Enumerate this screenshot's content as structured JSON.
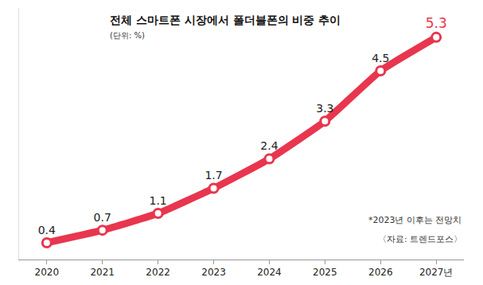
{
  "chart_data": {
    "type": "line",
    "title": "전체 스마트폰 시장에서 폴더블폰의 비중 추이",
    "subtitle": "(단위: %)",
    "categories": [
      "2020",
      "2021",
      "2022",
      "2023",
      "2024",
      "2025",
      "2026",
      "2027년"
    ],
    "values": [
      0.4,
      0.7,
      1.1,
      1.7,
      2.4,
      3.3,
      4.5,
      5.3
    ],
    "color": "#e8364e",
    "marker": "circle",
    "line_style": "solid",
    "ylim": [
      0,
      6
    ],
    "yticks": [],
    "tick_labels": "x",
    "data_labels": true,
    "grid": false,
    "annotations": [
      "*2023년 이후는 전망치",
      "〈자료: 트렌드포스〉"
    ]
  }
}
